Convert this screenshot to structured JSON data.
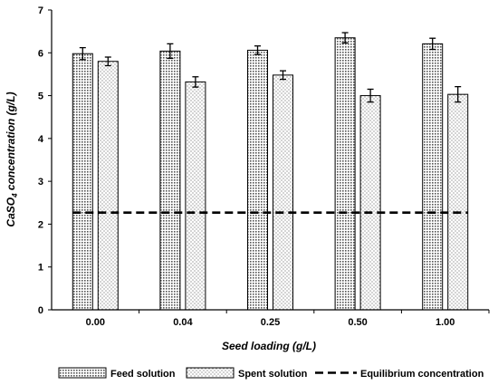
{
  "chart_data": {
    "type": "bar",
    "categories": [
      "0.00",
      "0.04",
      "0.25",
      "0.50",
      "1.00"
    ],
    "series": [
      {
        "name": "Feed solution",
        "values": [
          5.98,
          6.04,
          6.06,
          6.35,
          6.21
        ],
        "errors": [
          0.14,
          0.17,
          0.1,
          0.12,
          0.13
        ],
        "pattern": "dense-dots"
      },
      {
        "name": "Spent solution",
        "values": [
          5.8,
          5.32,
          5.48,
          5.0,
          5.03
        ],
        "errors": [
          0.1,
          0.12,
          0.1,
          0.15,
          0.18
        ],
        "pattern": "sparse-dots"
      }
    ],
    "reference_line": {
      "name": "Equilibrium concentration",
      "value": 2.27,
      "style": "dashed"
    },
    "xlabel": "Seed loading (g/L)",
    "ylabel": {
      "prefix": "CaSO",
      "subscript": "4",
      "suffix": " concentration (g/L)"
    },
    "ylim": [
      0,
      7
    ],
    "yticks": [
      "0",
      "1",
      "2",
      "3",
      "4",
      "5",
      "6",
      "7"
    ],
    "grid": false,
    "legend_position": "bottom"
  }
}
